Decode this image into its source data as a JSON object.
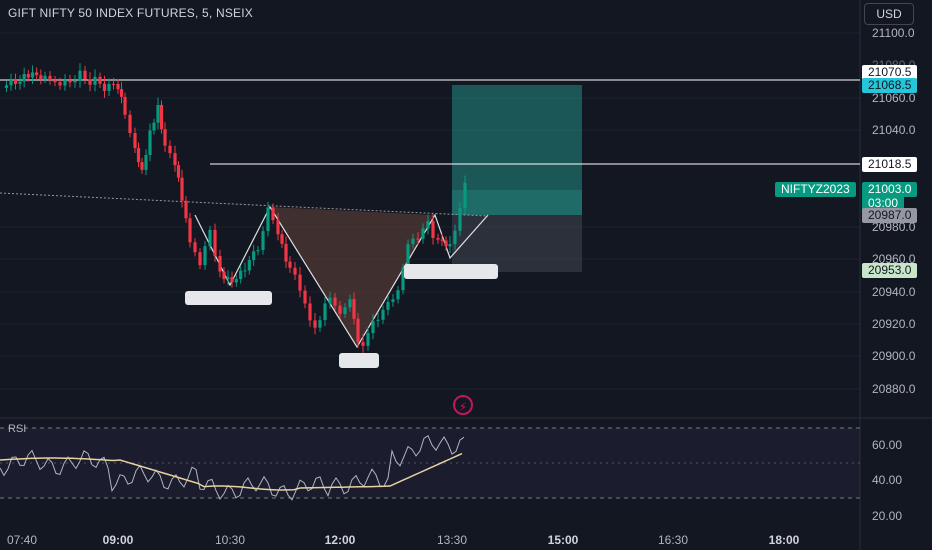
{
  "header": {
    "title": "GIFT NIFTY 50 INDEX FUTURES, 5, NSEIX",
    "currency_button": "USD"
  },
  "price_axis": {
    "ticks": [
      "21100.0",
      "21080.0",
      "21060.0",
      "21040.0",
      "20980.0",
      "20960.0",
      "20940.0",
      "20920.0",
      "20900.0",
      "20880.0"
    ]
  },
  "time_axis": {
    "ticks": [
      "07:40",
      "09:00",
      "10:30",
      "12:00",
      "13:30",
      "15:00",
      "16:30",
      "18:00"
    ],
    "bold": [
      "09:00",
      "12:00",
      "15:00",
      "18:00"
    ]
  },
  "price_tags": {
    "resistance": "21070.5",
    "target": "21068.5",
    "level2": "21018.5",
    "last_price": "21003.0",
    "countdown": "03:00",
    "entry": "20987.0",
    "stop": "20953.0",
    "symbol": "NIFTYZ2023"
  },
  "rsi": {
    "label": "RSI",
    "ticks": [
      "60.00",
      "40.00",
      "20.00"
    ]
  },
  "icons": {
    "alert": "lightning-icon"
  },
  "colors": {
    "background": "#131722",
    "up": "#089981",
    "down": "#f23645",
    "target_zone": "#26a69a",
    "pattern_fill": "#5d4037"
  }
}
